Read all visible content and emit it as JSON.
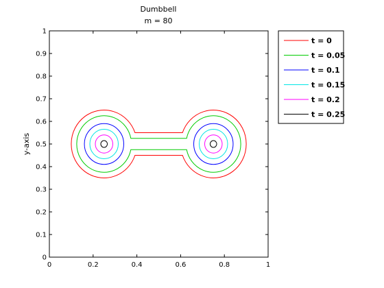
{
  "chart_data": {
    "type": "line",
    "title": "Dumbbell",
    "subtitle": "m = 80",
    "xlabel": "",
    "ylabel": "y-axis",
    "xlim": [
      0,
      1
    ],
    "ylim": [
      0,
      1
    ],
    "x_ticks": [
      "0",
      "0.2",
      "0.4",
      "0.6",
      "0.8",
      "1"
    ],
    "y_ticks": [
      "0",
      "0.1",
      "0.2",
      "0.3",
      "0.4",
      "0.5",
      "0.6",
      "0.7",
      "0.8",
      "0.9",
      "1"
    ],
    "grid": false,
    "legend_position": "outside-top-right",
    "series": [
      {
        "name": "t = 0",
        "color": "#ff0000",
        "bell_radius": 0.15,
        "neck_half_width": 0.05
      },
      {
        "name": "t = 0.05",
        "color": "#00cc00",
        "bell_radius": 0.125,
        "neck_half_width": 0.025
      },
      {
        "name": "t = 0.1",
        "color": "#0000ff",
        "bell_radius": 0.09,
        "neck_half_width": 0
      },
      {
        "name": "t = 0.15",
        "color": "#00e5e5",
        "bell_radius": 0.065,
        "neck_half_width": 0
      },
      {
        "name": "t = 0.2",
        "color": "#ff00ff",
        "bell_radius": 0.04,
        "neck_half_width": 0
      },
      {
        "name": "t = 0.25",
        "color": "#000000",
        "bell_radius": 0.015,
        "neck_half_width": 0
      }
    ],
    "bell_centers": [
      [
        0.25,
        0.5
      ],
      [
        0.75,
        0.5
      ]
    ]
  }
}
